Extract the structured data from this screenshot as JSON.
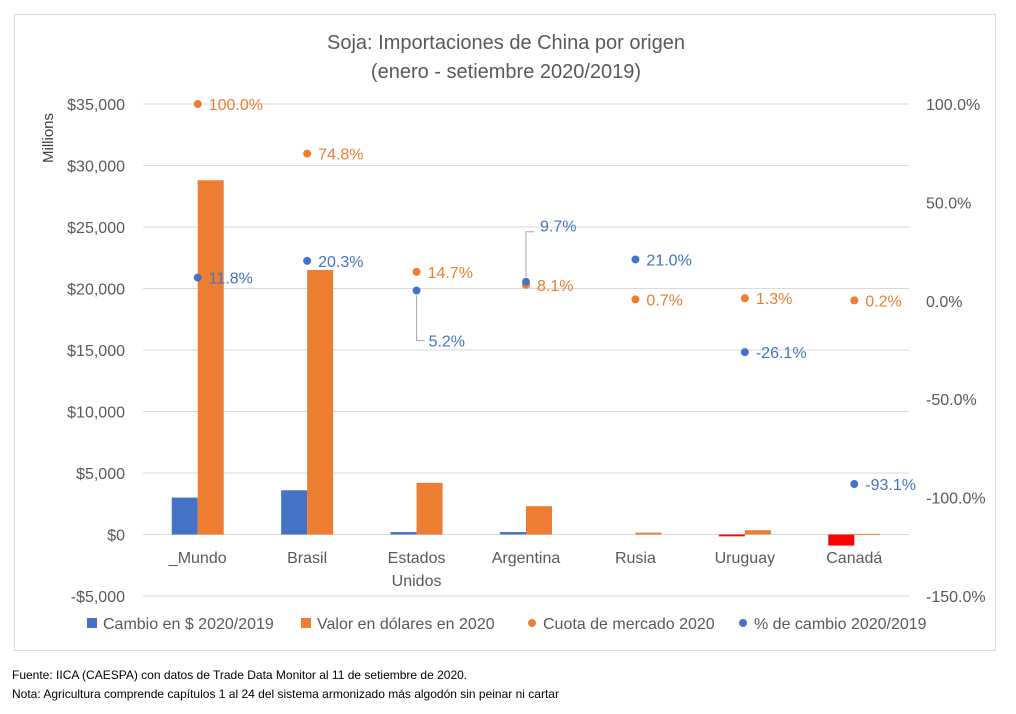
{
  "chart_data": {
    "type": "bar",
    "title": "Soja: Importaciones de China por origen",
    "subtitle": "(enero - setiembre 2020/2019)",
    "ylabel": "Millions",
    "categories": [
      "_Mundo",
      "Brasil",
      "Estados Unidos",
      "Argentina",
      "Rusia",
      "Uruguay",
      "Canadá"
    ],
    "y_left": {
      "range": [
        -5000,
        35000
      ],
      "ticks": [
        35000,
        30000,
        25000,
        20000,
        15000,
        10000,
        5000,
        0,
        -5000
      ],
      "tick_labels": [
        "$35,000",
        "$30,000",
        "$25,000",
        "$20,000",
        "$15,000",
        "$10,000",
        "$5,000",
        "$0",
        "-$5,000"
      ]
    },
    "y_right": {
      "range": [
        -150,
        100
      ],
      "ticks": [
        100,
        50,
        0,
        -50,
        -100,
        -150
      ],
      "tick_labels": [
        "100.0%",
        "50.0%",
        "0.0%",
        "-50.0%",
        "-100.0%",
        "-150.0%"
      ]
    },
    "grid": true,
    "legend_position": "bottom",
    "series": [
      {
        "name": "Cambio en $ 2020/2019",
        "kind": "bar",
        "axis": "left",
        "color": "#4472c4",
        "negative_color": "#ff0000",
        "values": [
          3000,
          3600,
          200,
          200,
          0,
          -150,
          -900
        ]
      },
      {
        "name": "Valor en dólares en 2020",
        "kind": "bar",
        "axis": "left",
        "color": "#ed7d31",
        "values": [
          28800,
          21500,
          4200,
          2300,
          150,
          350,
          50
        ]
      },
      {
        "name": "Cuota de mercado 2020",
        "kind": "scatter",
        "axis": "right",
        "color": "#ed7d31",
        "values": [
          100.0,
          74.8,
          14.7,
          8.1,
          0.7,
          1.3,
          0.2
        ],
        "labels": [
          "100.0%",
          "74.8%",
          "14.7%",
          "8.1%",
          "0.7%",
          "1.3%",
          "0.2%"
        ]
      },
      {
        "name": "% de cambio 2020/2019",
        "kind": "scatter",
        "axis": "right",
        "color": "#4472c4",
        "values": [
          11.8,
          20.3,
          5.2,
          9.7,
          21.0,
          -26.1,
          -93.1
        ],
        "labels": [
          "11.8%",
          "20.3%",
          "5.2%",
          "9.7%",
          "21.0%",
          "-26.1%",
          "-93.1%"
        ]
      }
    ]
  },
  "footnotes": {
    "source": "Fuente: IICA (CAESPA) con datos de Trade Data Monitor al 11 de setiembre de 2020.",
    "note": "Nota: Agricultura comprende capítulos 1 al 24 del sistema armonizado más algodón sin peinar ni cartar"
  }
}
